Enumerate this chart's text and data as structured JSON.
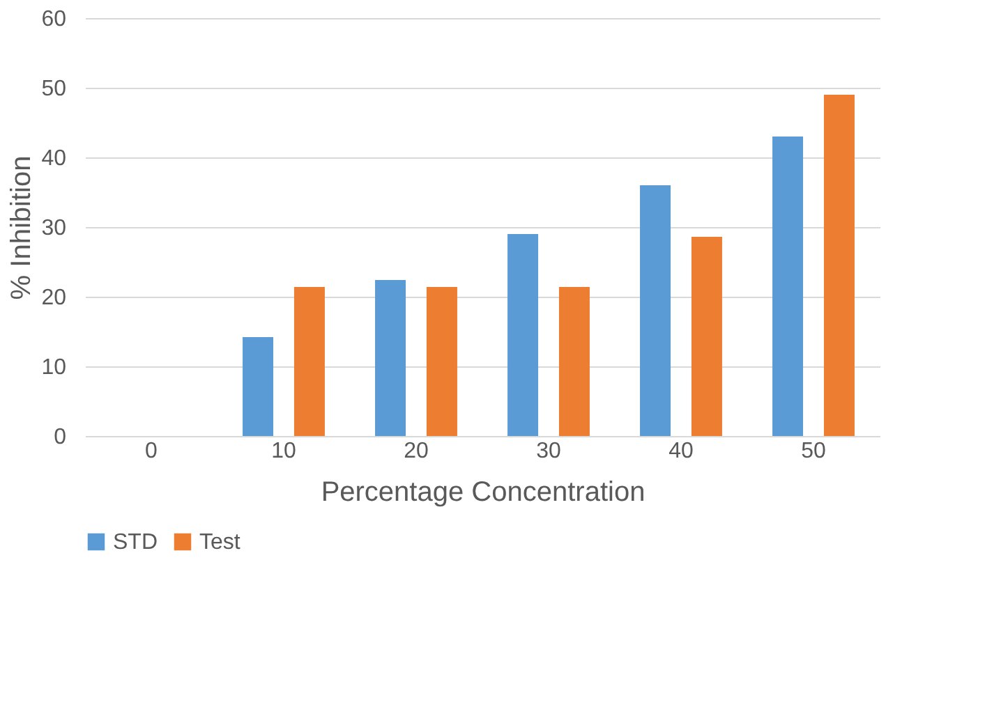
{
  "chart_data": {
    "type": "bar",
    "xlabel": "Percentage Concentration",
    "ylabel": "% Inhibition",
    "categories": [
      "0",
      "10",
      "20",
      "30",
      "40",
      "50"
    ],
    "series": [
      {
        "name": "STD",
        "color": "#5b9bd5",
        "values": [
          0,
          14.2,
          22.4,
          29,
          36,
          43
        ]
      },
      {
        "name": "Test",
        "color": "#ed7d31",
        "values": [
          0,
          21.4,
          21.4,
          21.4,
          28.6,
          49
        ]
      }
    ],
    "ylim": [
      0,
      60
    ],
    "yticks": [
      0,
      10,
      20,
      30,
      40,
      50,
      60
    ],
    "grid": "y",
    "legend": "bottom"
  }
}
